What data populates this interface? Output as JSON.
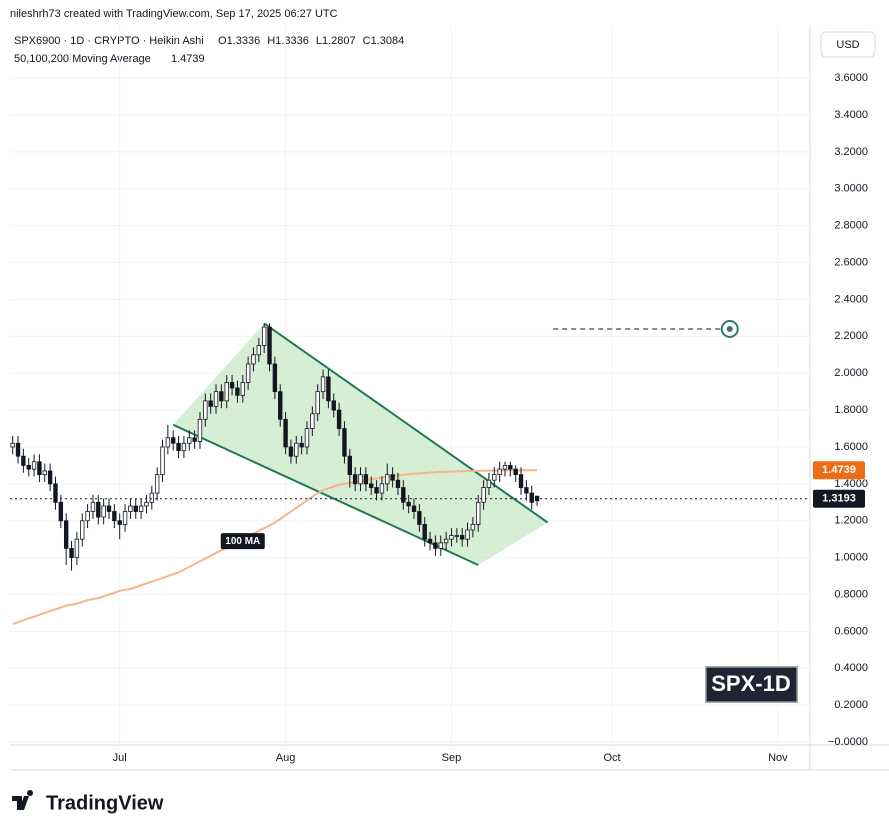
{
  "header": {
    "credit": "nileshrh73 created with TradingView.com, Sep 17, 2025 06:27 UTC",
    "brand": "TradingView"
  },
  "chart_data": {
    "type": "candlestick",
    "title": "SPX6900 · 1D · CRYPTO · Heikin Ashi",
    "ohlc": [
      {
        "label": "O",
        "value": 1.3336
      },
      {
        "label": "H",
        "value": 1.3336
      },
      {
        "label": "L",
        "value": 1.2807
      },
      {
        "label": "C",
        "value": 1.3084
      }
    ],
    "ma_label": "50,100,200 Moving Average",
    "ma_value": 1.4739,
    "ma_color": "#f4b48c",
    "ma_value_color": "#ef6c17",
    "ma_annotation": "100 MA",
    "currency": "USD",
    "watermark": "SPX-1D",
    "last_price": 1.3193,
    "candle_color": "#131722",
    "open": [
      1.6,
      1.62,
      1.55,
      1.5,
      1.48,
      1.52,
      1.45,
      1.47,
      1.4,
      1.3,
      1.2,
      1.05,
      1.0,
      1.1,
      1.2,
      1.25,
      1.3,
      1.22,
      1.28,
      1.25,
      1.2,
      1.18,
      1.25,
      1.28,
      1.25,
      1.28,
      1.3,
      1.35,
      1.45,
      1.6,
      1.65,
      1.62,
      1.58,
      1.62,
      1.65,
      1.63,
      1.75,
      1.85,
      1.82,
      1.9,
      1.85,
      1.95,
      1.92,
      1.88,
      1.95,
      2.05,
      2.1,
      2.15,
      2.25,
      2.05,
      1.9,
      1.75,
      1.6,
      1.55,
      1.62,
      1.6,
      1.7,
      1.78,
      1.9,
      1.98,
      1.85,
      1.8,
      1.7,
      1.55,
      1.45,
      1.4,
      1.45,
      1.4,
      1.38,
      1.35,
      1.4,
      1.45,
      1.42,
      1.38,
      1.3,
      1.28,
      1.25,
      1.18,
      1.1,
      1.08,
      1.05,
      1.08,
      1.1,
      1.12,
      1.12,
      1.1,
      1.15,
      1.18,
      1.3,
      1.38,
      1.42,
      1.45,
      1.48,
      1.5,
      1.48,
      1.45,
      1.38,
      1.35,
      1.3336
    ],
    "high": [
      1.66,
      1.66,
      1.59,
      1.54,
      1.56,
      1.56,
      1.51,
      1.51,
      1.44,
      1.34,
      1.24,
      1.09,
      1.14,
      1.24,
      1.29,
      1.34,
      1.34,
      1.32,
      1.32,
      1.29,
      1.24,
      1.29,
      1.32,
      1.32,
      1.32,
      1.34,
      1.39,
      1.49,
      1.64,
      1.72,
      1.69,
      1.66,
      1.66,
      1.69,
      1.69,
      1.79,
      1.89,
      1.89,
      1.94,
      1.94,
      1.99,
      1.99,
      1.96,
      1.99,
      2.09,
      2.14,
      2.19,
      2.27,
      2.27,
      2.09,
      1.94,
      1.79,
      1.64,
      1.66,
      1.66,
      1.74,
      1.82,
      1.94,
      2.02,
      2.02,
      1.89,
      1.84,
      1.74,
      1.59,
      1.49,
      1.49,
      1.49,
      1.44,
      1.42,
      1.44,
      1.51,
      1.49,
      1.46,
      1.42,
      1.34,
      1.32,
      1.29,
      1.22,
      1.14,
      1.12,
      1.12,
      1.14,
      1.16,
      1.16,
      1.16,
      1.19,
      1.22,
      1.34,
      1.42,
      1.46,
      1.49,
      1.52,
      1.52,
      1.52,
      1.5,
      1.49,
      1.42,
      1.39,
      1.3336
    ],
    "low": [
      1.56,
      1.51,
      1.46,
      1.44,
      1.44,
      1.41,
      1.41,
      1.36,
      1.26,
      1.16,
      0.96,
      0.93,
      0.96,
      1.06,
      1.16,
      1.21,
      1.18,
      1.18,
      1.21,
      1.16,
      1.1,
      1.14,
      1.21,
      1.21,
      1.21,
      1.24,
      1.26,
      1.31,
      1.41,
      1.56,
      1.58,
      1.54,
      1.54,
      1.58,
      1.59,
      1.59,
      1.71,
      1.78,
      1.78,
      1.81,
      1.81,
      1.88,
      1.84,
      1.84,
      1.91,
      2.01,
      2.06,
      2.11,
      2.01,
      1.86,
      1.71,
      1.56,
      1.51,
      1.51,
      1.56,
      1.56,
      1.66,
      1.74,
      1.86,
      1.81,
      1.76,
      1.66,
      1.51,
      1.38,
      1.36,
      1.36,
      1.36,
      1.34,
      1.31,
      1.31,
      1.36,
      1.38,
      1.34,
      1.26,
      1.24,
      1.21,
      1.14,
      1.06,
      1.04,
      1.01,
      1.01,
      1.04,
      1.06,
      1.08,
      1.06,
      1.06,
      1.11,
      1.14,
      1.26,
      1.34,
      1.38,
      1.41,
      1.44,
      1.44,
      1.41,
      1.34,
      1.31,
      1.26,
      1.2807
    ],
    "close": [
      1.62,
      1.55,
      1.5,
      1.48,
      1.52,
      1.45,
      1.47,
      1.4,
      1.3,
      1.2,
      1.05,
      1.0,
      1.1,
      1.2,
      1.25,
      1.3,
      1.22,
      1.28,
      1.25,
      1.2,
      1.18,
      1.25,
      1.28,
      1.25,
      1.28,
      1.3,
      1.35,
      1.45,
      1.6,
      1.65,
      1.62,
      1.58,
      1.62,
      1.65,
      1.63,
      1.75,
      1.85,
      1.82,
      1.9,
      1.85,
      1.95,
      1.92,
      1.88,
      1.95,
      2.05,
      2.1,
      2.15,
      2.25,
      2.05,
      1.9,
      1.75,
      1.6,
      1.55,
      1.62,
      1.6,
      1.7,
      1.78,
      1.9,
      1.98,
      1.85,
      1.8,
      1.7,
      1.55,
      1.45,
      1.4,
      1.45,
      1.4,
      1.38,
      1.35,
      1.4,
      1.45,
      1.42,
      1.38,
      1.3,
      1.28,
      1.25,
      1.18,
      1.1,
      1.08,
      1.05,
      1.08,
      1.1,
      1.12,
      1.12,
      1.1,
      1.15,
      1.18,
      1.3,
      1.38,
      1.42,
      1.45,
      1.48,
      1.5,
      1.48,
      1.45,
      1.38,
      1.35,
      1.3,
      1.3084
    ],
    "ma": [
      0.64,
      0.65,
      0.66,
      0.67,
      0.68,
      0.69,
      0.7,
      0.71,
      0.72,
      0.73,
      0.74,
      0.745,
      0.75,
      0.76,
      0.77,
      0.775,
      0.78,
      0.79,
      0.8,
      0.81,
      0.82,
      0.825,
      0.83,
      0.84,
      0.85,
      0.86,
      0.87,
      0.88,
      0.89,
      0.9,
      0.91,
      0.92,
      0.935,
      0.95,
      0.965,
      0.98,
      0.995,
      1.01,
      1.025,
      1.04,
      1.055,
      1.07,
      1.085,
      1.1,
      1.115,
      1.13,
      1.145,
      1.16,
      1.175,
      1.19,
      1.21,
      1.23,
      1.25,
      1.27,
      1.29,
      1.31,
      1.33,
      1.35,
      1.365,
      1.375,
      1.385,
      1.395,
      1.4,
      1.405,
      1.41,
      1.415,
      1.42,
      1.425,
      1.43,
      1.435,
      1.44,
      1.443,
      1.446,
      1.449,
      1.452,
      1.455,
      1.457,
      1.459,
      1.461,
      1.463,
      1.465,
      1.466,
      1.467,
      1.468,
      1.469,
      1.47,
      1.47,
      1.471,
      1.471,
      1.472,
      1.472,
      1.472,
      1.473,
      1.473,
      1.473,
      1.4735,
      1.4735,
      1.4738,
      1.4739
    ],
    "pattern": {
      "color": "#1e7a52",
      "fill": "#c8e8c4",
      "upper": {
        "x": [
          47,
          100
        ],
        "y": [
          2.27,
          1.19
        ]
      },
      "lower": {
        "x": [
          30,
          87
        ],
        "y": [
          1.72,
          0.96
        ]
      }
    },
    "target": {
      "x": [
        101,
        134
      ],
      "y": 2.24,
      "color": "#2e7d6b"
    },
    "xlim": [
      -0.5,
      149
    ],
    "ylim": [
      -0.016,
      3.861
    ],
    "xticks": [
      {
        "value": 20,
        "label": "Jul"
      },
      {
        "value": 51,
        "label": "Aug"
      },
      {
        "value": 82,
        "label": "Sep"
      },
      {
        "value": 112,
        "label": "Oct"
      },
      {
        "value": 143,
        "label": "Nov"
      }
    ],
    "yticks": [
      {
        "value": 0,
        "label": "−0.0000"
      },
      {
        "value": 0.2,
        "label": "0.2000"
      },
      {
        "value": 0.4,
        "label": "0.4000"
      },
      {
        "value": 0.6,
        "label": "0.6000"
      },
      {
        "value": 0.8,
        "label": "0.8000"
      },
      {
        "value": 1.0,
        "label": "1.0000"
      },
      {
        "value": 1.2,
        "label": "1.2000"
      },
      {
        "value": 1.4,
        "label": "1.4000"
      },
      {
        "value": 1.6,
        "label": "1.6000"
      },
      {
        "value": 1.8,
        "label": "1.8000"
      },
      {
        "value": 2.0,
        "label": "2.0000"
      },
      {
        "value": 2.2,
        "label": "2.2000"
      },
      {
        "value": 2.4,
        "label": "2.4000"
      },
      {
        "value": 2.6,
        "label": "2.6000"
      },
      {
        "value": 2.8,
        "label": "2.8000"
      },
      {
        "value": 3.0,
        "label": "3.0000"
      },
      {
        "value": 3.2,
        "label": "3.2000"
      },
      {
        "value": 3.4,
        "label": "3.4000"
      },
      {
        "value": 3.6,
        "label": "3.6000"
      }
    ],
    "grid": true
  }
}
